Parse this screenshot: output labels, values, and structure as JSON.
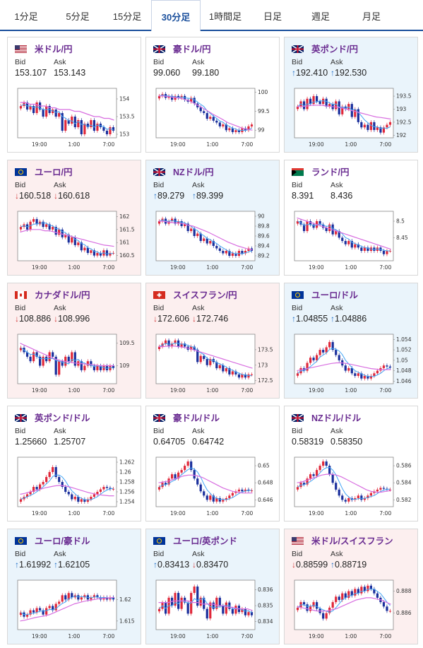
{
  "tabs": [
    {
      "label": "1分足",
      "active": false
    },
    {
      "label": "5分足",
      "active": false
    },
    {
      "label": "15分足",
      "active": false
    },
    {
      "label": "30分足",
      "active": true
    },
    {
      "label": "1時間足",
      "active": false
    },
    {
      "label": "日足",
      "active": false
    },
    {
      "label": "週足",
      "active": false
    },
    {
      "label": "月足",
      "active": false
    }
  ],
  "bid_label": "Bid",
  "ask_label": "Ask",
  "time_labels": [
    "19:00",
    "1:00",
    "7:00"
  ],
  "cards": [
    {
      "pair": "米ドル/円",
      "flag": "usd-jpy-flag",
      "trend": "none",
      "bid": "153.107",
      "ask": "153.143",
      "bid_dir": "",
      "ask_dir": "",
      "y_ticks": [
        "154",
        "153.5",
        "153"
      ],
      "ylim": [
        152.9,
        154.3
      ],
      "candles_close": [
        153.8,
        153.9,
        153.7,
        153.8,
        153.6,
        153.9,
        153.7,
        153.5,
        153.8,
        153.6,
        153.7,
        153.5,
        153.6,
        153.1,
        153.4,
        153.3,
        153.5,
        153.2,
        153.4,
        153.0,
        153.3,
        153.2,
        153.4,
        153.1,
        153.3,
        153.2,
        153.1,
        153.0,
        153.2,
        153.1
      ],
      "ma_long": [
        153.9,
        153.9,
        153.85,
        153.85,
        153.8,
        153.8,
        153.75,
        153.75,
        153.7,
        153.7,
        153.7,
        153.65,
        153.65,
        153.6,
        153.55,
        153.5,
        153.5,
        153.45,
        153.45,
        153.4
      ]
    },
    {
      "pair": "豪ドル/円",
      "flag": "aud-jpy-flag",
      "trend": "none",
      "bid": "99.060",
      "ask": "99.180",
      "bid_dir": "",
      "ask_dir": "",
      "y_ticks": [
        "100",
        "99.5",
        "99"
      ],
      "ylim": [
        98.8,
        100.1
      ],
      "candles_close": [
        99.9,
        99.95,
        99.85,
        99.9,
        99.8,
        99.9,
        99.85,
        99.9,
        99.8,
        99.75,
        99.85,
        99.7,
        99.6,
        99.5,
        99.45,
        99.3,
        99.35,
        99.25,
        99.2,
        99.1,
        99.15,
        99.0,
        99.05,
        98.95,
        99.0,
        98.95,
        99.05,
        99.0,
        99.1,
        99.15
      ],
      "ma_long": [
        99.9,
        99.9,
        99.88,
        99.86,
        99.85,
        99.82,
        99.78,
        99.72,
        99.65,
        99.58,
        99.5,
        99.42,
        99.35,
        99.28,
        99.2,
        99.15,
        99.1,
        99.05,
        99.02,
        99.0
      ]
    },
    {
      "pair": "英ポンド/円",
      "flag": "gbp-jpy-flag",
      "trend": "up",
      "bid": "192.410",
      "ask": "192.530",
      "bid_dir": "up",
      "ask_dir": "up",
      "y_ticks": [
        "193.5",
        "193",
        "192.5",
        "192"
      ],
      "ylim": [
        191.9,
        193.8
      ],
      "candles_close": [
        193.1,
        193.3,
        193.0,
        193.4,
        193.2,
        193.5,
        193.3,
        193.2,
        193.4,
        193.1,
        193.2,
        193.0,
        193.3,
        192.8,
        193.1,
        193.0,
        193.2,
        192.7,
        193.0,
        192.5,
        192.3,
        192.4,
        192.2,
        192.5,
        192.2,
        192.3,
        192.1,
        192.3,
        192.4,
        192.5
      ],
      "ma_long": [
        193.1,
        193.1,
        193.12,
        193.15,
        193.15,
        193.15,
        193.12,
        193.1,
        193.08,
        193.05,
        193.0,
        192.95,
        192.9,
        192.85,
        192.8,
        192.75,
        192.7,
        192.68,
        192.65,
        192.62
      ]
    },
    {
      "pair": "ユーロ/円",
      "flag": "eur-jpy-flag",
      "trend": "down",
      "bid": "160.518",
      "ask": "160.618",
      "bid_dir": "down",
      "ask_dir": "down",
      "y_ticks": [
        "162",
        "161.5",
        "161",
        "160.5"
      ],
      "ylim": [
        160.3,
        162.2
      ],
      "candles_close": [
        161.6,
        161.7,
        161.5,
        161.8,
        161.9,
        161.7,
        161.8,
        161.6,
        161.7,
        161.5,
        161.6,
        161.3,
        161.5,
        161.2,
        161.3,
        161.0,
        161.2,
        160.9,
        161.0,
        160.7,
        160.8,
        160.6,
        160.7,
        160.5,
        160.6,
        160.5,
        160.7,
        160.5,
        160.6,
        160.6
      ],
      "ma_long": [
        161.4,
        161.45,
        161.5,
        161.5,
        161.5,
        161.45,
        161.45,
        161.4,
        161.35,
        161.3,
        161.25,
        161.2,
        161.15,
        161.1,
        161.05,
        161.0,
        160.95,
        160.9,
        160.88,
        160.85
      ]
    },
    {
      "pair": "NZドル/円",
      "flag": "nzd-jpy-flag",
      "trend": "up",
      "bid": "89.279",
      "ask": "89.399",
      "bid_dir": "up",
      "ask_dir": "up",
      "y_ticks": [
        "90",
        "89.8",
        "89.6",
        "89.4",
        "89.2"
      ],
      "ylim": [
        89.1,
        90.1
      ],
      "candles_close": [
        89.9,
        89.95,
        89.85,
        89.9,
        89.95,
        89.85,
        89.9,
        89.8,
        89.85,
        89.7,
        89.75,
        89.6,
        89.65,
        89.5,
        89.55,
        89.45,
        89.5,
        89.4,
        89.35,
        89.3,
        89.25,
        89.3,
        89.2,
        89.25,
        89.2,
        89.3,
        89.25,
        89.3,
        89.35,
        89.3
      ],
      "ma_long": [
        89.9,
        89.9,
        89.88,
        89.87,
        89.86,
        89.85,
        89.82,
        89.8,
        89.76,
        89.72,
        89.68,
        89.63,
        89.58,
        89.53,
        89.48,
        89.44,
        89.4,
        89.37,
        89.34,
        89.32
      ]
    },
    {
      "pair": "ランド/円",
      "flag": "zar-jpy-flag",
      "trend": "none",
      "bid": "8.391",
      "ask": "8.436",
      "bid_dir": "",
      "ask_dir": "",
      "y_ticks": [
        "8.5",
        "8.45"
      ],
      "ylim": [
        8.38,
        8.53
      ],
      "candles_close": [
        8.5,
        8.49,
        8.47,
        8.5,
        8.49,
        8.48,
        8.5,
        8.49,
        8.48,
        8.47,
        8.49,
        8.46,
        8.47,
        8.45,
        8.44,
        8.43,
        8.44,
        8.42,
        8.43,
        8.42,
        8.41,
        8.42,
        8.41,
        8.42,
        8.41,
        8.42,
        8.41,
        8.4,
        8.41,
        8.41
      ],
      "ma_long": [
        8.51,
        8.505,
        8.5,
        8.495,
        8.49,
        8.485,
        8.48,
        8.475,
        8.47,
        8.465,
        8.46,
        8.455,
        8.45,
        8.445,
        8.44,
        8.435,
        8.43,
        8.425,
        8.42,
        8.415
      ]
    },
    {
      "pair": "カナダドル/円",
      "flag": "cad-jpy-flag",
      "trend": "down",
      "bid": "108.886",
      "ask": "108.996",
      "bid_dir": "down",
      "ask_dir": "down",
      "y_ticks": [
        "109.5",
        "109"
      ],
      "ylim": [
        108.6,
        109.7
      ],
      "candles_close": [
        109.4,
        109.3,
        109.2,
        109.1,
        109.3,
        109.2,
        109.0,
        109.2,
        109.1,
        109.3,
        109.2,
        108.8,
        109.1,
        109.0,
        109.2,
        109.1,
        109.3,
        109.0,
        109.1,
        108.9,
        109.0,
        109.1,
        109.0,
        108.9,
        109.0,
        108.9,
        109.0,
        108.9,
        109.0,
        108.95
      ],
      "ma_long": [
        109.5,
        109.45,
        109.4,
        109.35,
        109.3,
        109.25,
        109.2,
        109.15,
        109.12,
        109.1,
        109.08,
        109.06,
        109.05,
        109.04,
        109.03,
        109.02,
        109.0,
        109.0,
        109.0,
        109.0
      ]
    },
    {
      "pair": "スイスフラン/円",
      "flag": "chf-jpy-flag",
      "trend": "down",
      "bid": "172.606",
      "ask": "172.746",
      "bid_dir": "down",
      "ask_dir": "down",
      "y_ticks": [
        "173.5",
        "173",
        "172.5"
      ],
      "ylim": [
        172.4,
        174.0
      ],
      "candles_close": [
        173.6,
        173.7,
        173.8,
        173.6,
        173.7,
        173.8,
        173.6,
        173.7,
        173.6,
        173.5,
        173.6,
        173.5,
        173.1,
        173.3,
        173.2,
        173.0,
        173.2,
        173.1,
        172.9,
        173.0,
        172.8,
        172.9,
        172.7,
        172.8,
        172.7,
        172.6,
        172.7,
        172.6,
        172.7,
        172.7
      ],
      "ma_long": [
        173.6,
        173.6,
        173.62,
        173.62,
        173.6,
        173.58,
        173.55,
        173.5,
        173.45,
        173.4,
        173.35,
        173.3,
        173.25,
        173.2,
        173.15,
        173.1,
        173.05,
        173.0,
        172.95,
        172.9
      ]
    },
    {
      "pair": "ユーロ/ドル",
      "flag": "eur-usd-flag",
      "trend": "up",
      "bid": "1.04855",
      "ask": "1.04886",
      "bid_dir": "up",
      "ask_dir": "up",
      "y_ticks": [
        "1.054",
        "1.052",
        "1.05",
        "1.048",
        "1.046"
      ],
      "ylim": [
        1.0455,
        1.055
      ],
      "candles_close": [
        1.0475,
        1.0485,
        1.048,
        1.0495,
        1.0505,
        1.05,
        1.051,
        1.052,
        1.0515,
        1.0525,
        1.0535,
        1.052,
        1.051,
        1.05,
        1.049,
        1.048,
        1.0485,
        1.0475,
        1.047,
        1.0475,
        1.0465,
        1.047,
        1.0465,
        1.047,
        1.0475,
        1.048,
        1.0485,
        1.049,
        1.0488,
        1.0486
      ],
      "ma_long": [
        1.048,
        1.0482,
        1.0484,
        1.0486,
        1.0488,
        1.049,
        1.0492,
        1.0494,
        1.0495,
        1.0495,
        1.0494,
        1.0492,
        1.049,
        1.0488,
        1.0486,
        1.0484,
        1.0483,
        1.0482,
        1.0482,
        1.0482
      ]
    },
    {
      "pair": "英ポンド/ドル",
      "flag": "gbp-usd-flag",
      "trend": "none",
      "bid": "1.25660",
      "ask": "1.25707",
      "bid_dir": "",
      "ask_dir": "",
      "y_ticks": [
        "1.262",
        "1.26",
        "1.258",
        "1.256",
        "1.254"
      ],
      "ylim": [
        1.253,
        1.263
      ],
      "candles_close": [
        1.2545,
        1.255,
        1.2555,
        1.256,
        1.257,
        1.2565,
        1.2575,
        1.258,
        1.259,
        1.26,
        1.261,
        1.259,
        1.258,
        1.257,
        1.256,
        1.2555,
        1.2545,
        1.255,
        1.254,
        1.2545,
        1.254,
        1.2545,
        1.255,
        1.2555,
        1.256,
        1.2565,
        1.257,
        1.2568,
        1.2566,
        1.2566
      ],
      "ma_long": [
        1.2555,
        1.2557,
        1.256,
        1.2562,
        1.2565,
        1.2568,
        1.257,
        1.2572,
        1.2573,
        1.2572,
        1.257,
        1.2567,
        1.2564,
        1.2561,
        1.2558,
        1.2556,
        1.2554,
        1.2553,
        1.2552,
        1.2552
      ]
    },
    {
      "pair": "豪ドル/ドル",
      "flag": "aud-usd-flag",
      "trend": "none",
      "bid": "0.64705",
      "ask": "0.64742",
      "bid_dir": "",
      "ask_dir": "",
      "y_ticks": [
        "0.65",
        "0.648",
        "0.646"
      ],
      "ylim": [
        0.6452,
        0.651
      ],
      "candles_close": [
        0.6475,
        0.648,
        0.6478,
        0.6485,
        0.649,
        0.6485,
        0.6492,
        0.6495,
        0.65,
        0.6505,
        0.6495,
        0.6485,
        0.6478,
        0.647,
        0.6465,
        0.646,
        0.6465,
        0.6458,
        0.6462,
        0.6458,
        0.646,
        0.6462,
        0.6465,
        0.6468,
        0.647,
        0.6472,
        0.647,
        0.6472,
        0.6471,
        0.6471
      ],
      "ma_long": [
        0.648,
        0.6481,
        0.6482,
        0.6484,
        0.6486,
        0.6488,
        0.6489,
        0.6489,
        0.6488,
        0.6486,
        0.6483,
        0.648,
        0.6477,
        0.6474,
        0.6472,
        0.647,
        0.6469,
        0.6468,
        0.6468,
        0.6468
      ]
    },
    {
      "pair": "NZドル/ドル",
      "flag": "nzd-usd-flag",
      "trend": "none",
      "bid": "0.58319",
      "ask": "0.58350",
      "bid_dir": "",
      "ask_dir": "",
      "y_ticks": [
        "0.586",
        "0.584",
        "0.582"
      ],
      "ylim": [
        0.5812,
        0.587
      ],
      "candles_close": [
        0.5835,
        0.584,
        0.5838,
        0.5845,
        0.585,
        0.5848,
        0.5855,
        0.586,
        0.5865,
        0.586,
        0.585,
        0.584,
        0.5832,
        0.5825,
        0.582,
        0.5818,
        0.5822,
        0.582,
        0.5822,
        0.5825,
        0.582,
        0.5822,
        0.5825,
        0.5828,
        0.583,
        0.5832,
        0.5834,
        0.5833,
        0.5832,
        0.5832
      ],
      "ma_long": [
        0.584,
        0.5841,
        0.5843,
        0.5845,
        0.5847,
        0.5849,
        0.585,
        0.585,
        0.5849,
        0.5847,
        0.5844,
        0.5841,
        0.5838,
        0.5835,
        0.5832,
        0.583,
        0.5829,
        0.5829,
        0.583,
        0.5831
      ]
    },
    {
      "pair": "ユーロ/豪ドル",
      "flag": "eur-aud-flag",
      "trend": "up",
      "bid": "1.61992",
      "ask": "1.62105",
      "bid_dir": "up",
      "ask_dir": "up",
      "y_ticks": [
        "1.62",
        "1.615"
      ],
      "ylim": [
        1.613,
        1.6245
      ],
      "candles_close": [
        1.617,
        1.616,
        1.6165,
        1.6175,
        1.617,
        1.618,
        1.6175,
        1.6165,
        1.618,
        1.6185,
        1.6175,
        1.619,
        1.6195,
        1.621,
        1.62,
        1.6215,
        1.6205,
        1.621,
        1.62,
        1.6205,
        1.621,
        1.62,
        1.6205,
        1.621,
        1.6205,
        1.62,
        1.6205,
        1.62,
        1.6205,
        1.62
      ],
      "ma_long": [
        1.615,
        1.6152,
        1.6155,
        1.6158,
        1.616,
        1.6162,
        1.6165,
        1.617,
        1.6175,
        1.618,
        1.6185,
        1.619,
        1.6193,
        1.6196,
        1.6198,
        1.62,
        1.6202,
        1.6203,
        1.6204,
        1.6205
      ]
    },
    {
      "pair": "ユーロ/英ポンド",
      "flag": "eur-gbp-flag",
      "trend": "up",
      "bid": "0.83413",
      "ask": "0.83470",
      "bid_dir": "up",
      "ask_dir": "down",
      "y_ticks": [
        "0.836",
        "0.835",
        "0.834"
      ],
      "ylim": [
        0.8335,
        0.8366
      ],
      "candles_close": [
        0.8348,
        0.8352,
        0.8345,
        0.8355,
        0.835,
        0.8358,
        0.8348,
        0.8355,
        0.8352,
        0.8345,
        0.8358,
        0.8362,
        0.835,
        0.8355,
        0.8348,
        0.8342,
        0.8352,
        0.8348,
        0.8355,
        0.835,
        0.8345,
        0.8352,
        0.8348,
        0.8345,
        0.835,
        0.8346,
        0.8348,
        0.8344,
        0.8346,
        0.8344
      ],
      "ma_long": [
        0.8352,
        0.8352,
        0.8352,
        0.8353,
        0.8353,
        0.8353,
        0.8353,
        0.8352,
        0.8352,
        0.8351,
        0.8351,
        0.8351,
        0.835,
        0.835,
        0.8349,
        0.8349,
        0.8348,
        0.8348,
        0.8348,
        0.8347
      ]
    },
    {
      "pair": "米ドル/スイスフラン",
      "flag": "usd-chf-flag",
      "trend": "down",
      "bid": "0.88599",
      "ask": "0.88719",
      "bid_dir": "down",
      "ask_dir": "up",
      "y_ticks": [
        "0.888",
        "0.886"
      ],
      "ylim": [
        0.8845,
        0.889
      ],
      "candles_close": [
        0.8865,
        0.887,
        0.8868,
        0.8862,
        0.8866,
        0.887,
        0.8864,
        0.886,
        0.8855,
        0.886,
        0.8865,
        0.887,
        0.8875,
        0.8872,
        0.8878,
        0.8874,
        0.888,
        0.8876,
        0.8882,
        0.8878,
        0.8884,
        0.888,
        0.8885,
        0.8882,
        0.8878,
        0.8874,
        0.887,
        0.8866,
        0.8862,
        0.8862
      ],
      "ma_long": [
        0.8866,
        0.8865,
        0.8864,
        0.8863,
        0.8862,
        0.8862,
        0.8862,
        0.8863,
        0.8864,
        0.8866,
        0.8868,
        0.887,
        0.8872,
        0.8873,
        0.8874,
        0.8874,
        0.8873,
        0.8872,
        0.887,
        0.8868
      ]
    }
  ]
}
